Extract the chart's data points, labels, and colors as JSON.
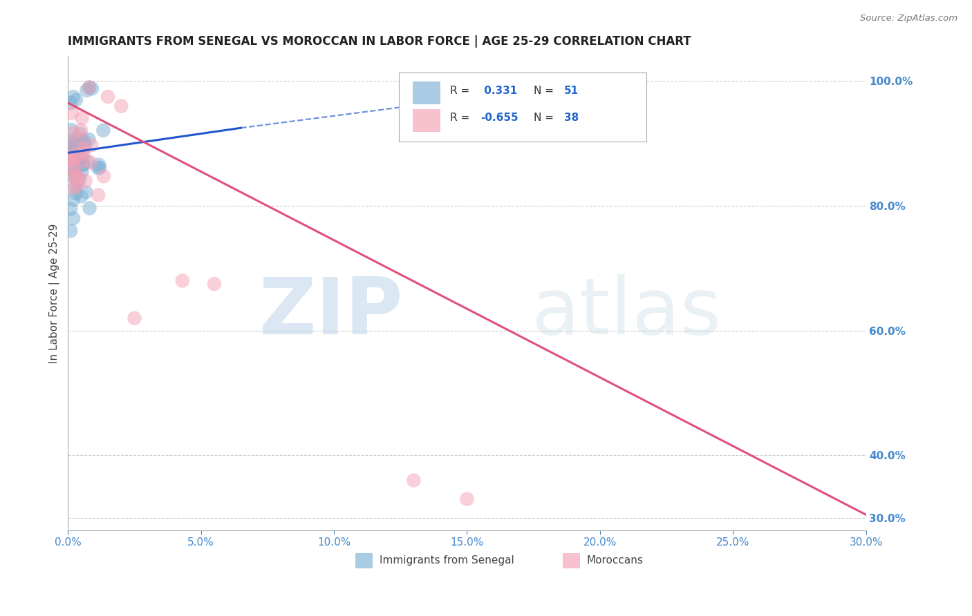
{
  "title": "IMMIGRANTS FROM SENEGAL VS MOROCCAN IN LABOR FORCE | AGE 25-29 CORRELATION CHART",
  "source": "Source: ZipAtlas.com",
  "ylabel": "In Labor Force | Age 25-29",
  "xlim": [
    0.0,
    0.3
  ],
  "ylim": [
    0.28,
    1.04
  ],
  "yticks": [
    0.3,
    0.4,
    0.6,
    0.8,
    1.0
  ],
  "ytick_labels": [
    "30.0%",
    "40.0%",
    "60.0%",
    "80.0%",
    "100.0%"
  ],
  "xticks": [
    0.0,
    0.05,
    0.1,
    0.15,
    0.2,
    0.25,
    0.3
  ],
  "xtick_labels": [
    "0.0%",
    "5.0%",
    "10.0%",
    "15.0%",
    "20.0%",
    "25.0%",
    "30.0%"
  ],
  "senegal_R": 0.331,
  "senegal_N": 51,
  "moroccan_R": -0.655,
  "moroccan_N": 38,
  "senegal_color": "#7bafd4",
  "moroccan_color": "#f4a0b5",
  "trend_senegal_color": "#2255cc",
  "trend_moroccan_color": "#e0507a",
  "watermark": "ZIPatlas",
  "background_color": "#ffffff",
  "grid_color": "#cccccc",
  "tick_label_color": "#4488cc",
  "legend_R_color": "#2266cc",
  "legend_N_color": "#2266cc"
}
